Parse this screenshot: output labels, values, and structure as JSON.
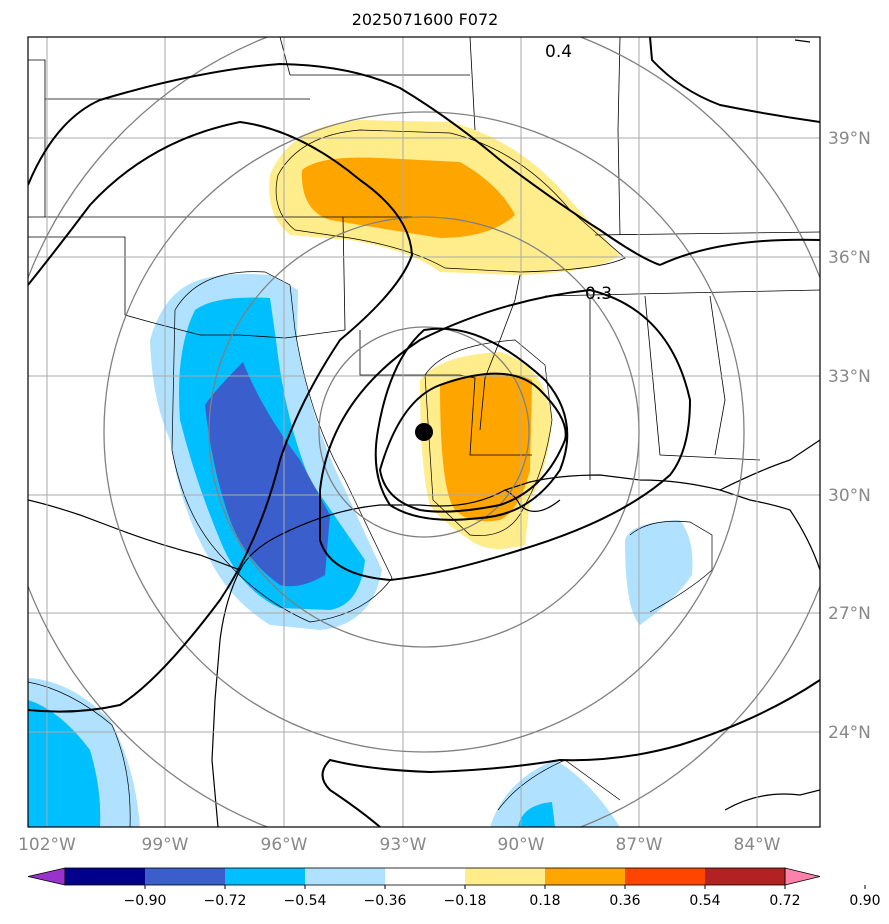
{
  "title": "2025071600 F072",
  "map": {
    "lon_labels": [
      "102°W",
      "99°W",
      "96°W",
      "93°W",
      "90°W",
      "87°W",
      "84°W"
    ],
    "lat_labels": [
      "39°N",
      "36°N",
      "33°N",
      "30°N",
      "27°N",
      "24°N"
    ],
    "contour_labels": [
      "0.4",
      "0.3"
    ],
    "center_marker": "storm-center"
  },
  "colorbar": {
    "ticks": [
      "−0.90",
      "−0.72",
      "−0.54",
      "−0.36",
      "−0.18",
      "0.18",
      "0.36",
      "0.54",
      "0.72",
      "0.90"
    ],
    "colors": [
      "#9932cc",
      "#00008b",
      "#3a5fcd",
      "#00bfff",
      "#b0e2ff",
      "#ffffff",
      "#ffec8b",
      "#ffa500",
      "#ff4500",
      "#b22222",
      "#ff82ab"
    ]
  }
}
